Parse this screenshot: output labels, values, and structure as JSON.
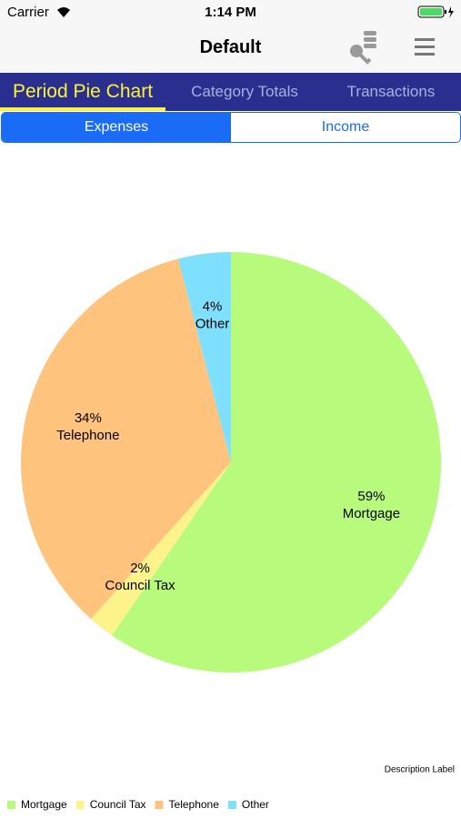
{
  "status_bar": {
    "carrier": "Carrier",
    "time": "1:14 PM"
  },
  "nav": {
    "title": "Default"
  },
  "tabs": [
    {
      "label": "Period Pie Chart"
    },
    {
      "label": "Category Totals"
    },
    {
      "label": "Transactions"
    }
  ],
  "segments": [
    {
      "label": "Expenses"
    },
    {
      "label": "Income"
    }
  ],
  "chart_data": {
    "type": "pie",
    "categories": [
      "Mortgage",
      "Council Tax",
      "Telephone",
      "Other"
    ],
    "values": [
      59,
      2,
      34,
      4
    ],
    "value_labels": [
      "59%",
      "2%",
      "34%",
      "4%"
    ],
    "colors": [
      "#b8fb7c",
      "#fdf38b",
      "#fec47d",
      "#7fe0fd"
    ],
    "description": "Description Label",
    "legend": "bottom-left"
  }
}
